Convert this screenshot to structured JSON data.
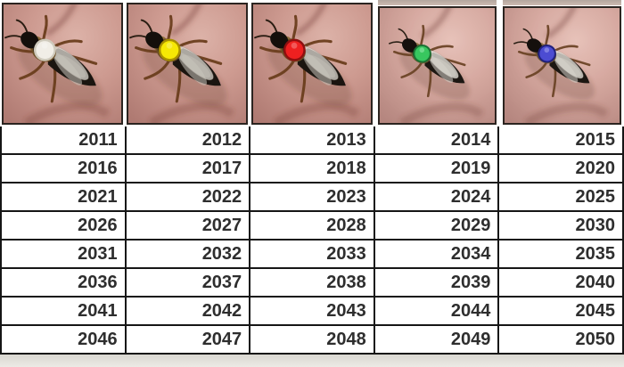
{
  "panels": [
    {
      "name": "white",
      "marking_color": "white",
      "dot_color": "#f1eee7",
      "dot_edge": "#cfcabc"
    },
    {
      "name": "yellow",
      "marking_color": "yellow",
      "dot_color": "#f6e805",
      "dot_edge": "#a88f00"
    },
    {
      "name": "red",
      "marking_color": "red",
      "dot_color": "#ee2020",
      "dot_edge": "#8f0f0f"
    },
    {
      "name": "green",
      "marking_color": "green",
      "dot_color": "#1fc04a",
      "dot_edge": "#0b6f28"
    },
    {
      "name": "blue",
      "marking_color": "blue",
      "dot_color": "#4444dc",
      "dot_edge": "#1d1d85"
    }
  ],
  "table": {
    "rows": [
      [
        "2011",
        "2012",
        "2013",
        "2014",
        "2015"
      ],
      [
        "2016",
        "2017",
        "2018",
        "2019",
        "2020"
      ],
      [
        "2021",
        "2022",
        "2023",
        "2024",
        "2025"
      ],
      [
        "2026",
        "2027",
        "2028",
        "2029",
        "2030"
      ],
      [
        "2031",
        "2032",
        "2033",
        "2034",
        "2035"
      ],
      [
        "2036",
        "2037",
        "2038",
        "2039",
        "2040"
      ],
      [
        "2041",
        "2042",
        "2043",
        "2044",
        "2045"
      ],
      [
        "2046",
        "2047",
        "2048",
        "2049",
        "2050"
      ]
    ]
  },
  "colors": {
    "table_border": "#161616",
    "table_text": "#2e2e2e",
    "photo_border": "#2b2420",
    "skin_light": "#dcb2a8",
    "skin_mid": "#cd9a90",
    "skin_dark": "#af7a72"
  }
}
